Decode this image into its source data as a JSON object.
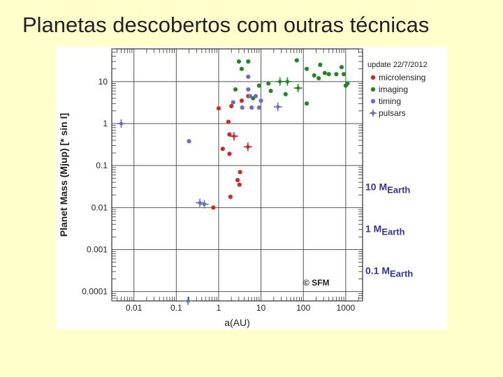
{
  "slide": {
    "title": "Planetas descobertos com outras técnicas"
  },
  "colors": {
    "background": "#ffffcc",
    "microlensing": "#dd2222",
    "imaging": "#1f8a1f",
    "timing": "#6a6ad0",
    "pulsars": "#6a6ad0",
    "earth_marker_text": "#3333aa"
  },
  "chart_data": {
    "type": "scatter",
    "title": "",
    "xlabel": "a(AU)",
    "ylabel": "Planet Mass (Mjup) [* sin I]",
    "xscale": "log",
    "yscale": "log",
    "xlim": [
      0.003,
      2500
    ],
    "ylim": [
      6e-05,
      60
    ],
    "xticks": [
      0.01,
      0.1,
      1,
      10,
      100,
      1000
    ],
    "xtick_labels": [
      "0.01",
      "0.1",
      "1",
      "10",
      "100",
      "1000"
    ],
    "yticks": [
      0.0001,
      0.001,
      0.01,
      0.1,
      1,
      10
    ],
    "ytick_labels": [
      "0.0001",
      "0.001",
      "0.01",
      "0.1",
      "1",
      "10"
    ],
    "grid": true,
    "legend_position": "top-right",
    "legend_title": "update 22/7/2012",
    "watermark": "© SFM",
    "earth_mass_labels": [
      {
        "prefix": "10 M",
        "sub": "Earth",
        "mass": 0.0315
      },
      {
        "prefix": "1 M",
        "sub": "Earth",
        "mass": 0.00315
      },
      {
        "prefix": "0.1 M",
        "sub": "Earth",
        "mass": 0.000315
      }
    ],
    "series": [
      {
        "name": "microlensing",
        "marker": "dot",
        "points": [
          {
            "x": 1.0,
            "y": 2.3
          },
          {
            "x": 2.0,
            "y": 2.6
          },
          {
            "x": 3.5,
            "y": 3.5
          },
          {
            "x": 5.0,
            "y": 4.5
          },
          {
            "x": 1.7,
            "y": 1.1
          },
          {
            "x": 1.8,
            "y": 0.55
          },
          {
            "x": 1.25,
            "y": 0.25
          },
          {
            "x": 1.8,
            "y": 0.19
          },
          {
            "x": 2.8,
            "y": 0.045
          },
          {
            "x": 3.2,
            "y": 0.07
          },
          {
            "x": 3.1,
            "y": 0.035
          },
          {
            "x": 1.9,
            "y": 0.018
          },
          {
            "x": 0.75,
            "y": 0.01
          },
          {
            "x": 2.3,
            "y": 0.5,
            "err": true
          },
          {
            "x": 4.9,
            "y": 0.28,
            "err": true
          }
        ]
      },
      {
        "name": "imaging",
        "marker": "dot",
        "points": [
          {
            "x": 3.0,
            "y": 30
          },
          {
            "x": 5.0,
            "y": 30
          },
          {
            "x": 70,
            "y": 32
          },
          {
            "x": 250,
            "y": 25
          },
          {
            "x": 800,
            "y": 22
          },
          {
            "x": 3.5,
            "y": 20
          },
          {
            "x": 120,
            "y": 20
          },
          {
            "x": 320,
            "y": 16
          },
          {
            "x": 400,
            "y": 15
          },
          {
            "x": 180,
            "y": 14
          },
          {
            "x": 230,
            "y": 12
          },
          {
            "x": 600,
            "y": 15
          },
          {
            "x": 900,
            "y": 15
          },
          {
            "x": 2.5,
            "y": 6.5
          },
          {
            "x": 9,
            "y": 8
          },
          {
            "x": 15,
            "y": 9
          },
          {
            "x": 17,
            "y": 6
          },
          {
            "x": 38,
            "y": 5
          },
          {
            "x": 120,
            "y": 3
          },
          {
            "x": 1100,
            "y": 9
          },
          {
            "x": 1000,
            "y": 8
          },
          {
            "x": 6.5,
            "y": 4
          },
          {
            "x": 28,
            "y": 10,
            "err": true
          },
          {
            "x": 42,
            "y": 10,
            "err": true
          },
          {
            "x": 75,
            "y": 7,
            "err": true
          }
        ]
      },
      {
        "name": "timing",
        "marker": "dot",
        "points": [
          {
            "x": 5.0,
            "y": 13
          },
          {
            "x": 5.0,
            "y": 6.5
          },
          {
            "x": 5.5,
            "y": 4.5
          },
          {
            "x": 7.5,
            "y": 4.5
          },
          {
            "x": 10,
            "y": 3.5
          },
          {
            "x": 2.2,
            "y": 3.2
          },
          {
            "x": 3.6,
            "y": 2.4
          },
          {
            "x": 6.0,
            "y": 2.4
          },
          {
            "x": 9.0,
            "y": 2.4
          },
          {
            "x": 0.2,
            "y": 0.38
          }
        ]
      },
      {
        "name": "pulsars",
        "marker": "cross",
        "points": [
          {
            "x": 0.005,
            "y": 1.0
          },
          {
            "x": 25,
            "y": 2.5
          },
          {
            "x": 0.36,
            "y": 0.013
          },
          {
            "x": 0.46,
            "y": 0.012
          },
          {
            "x": 0.19,
            "y": 6e-05
          }
        ]
      }
    ]
  }
}
